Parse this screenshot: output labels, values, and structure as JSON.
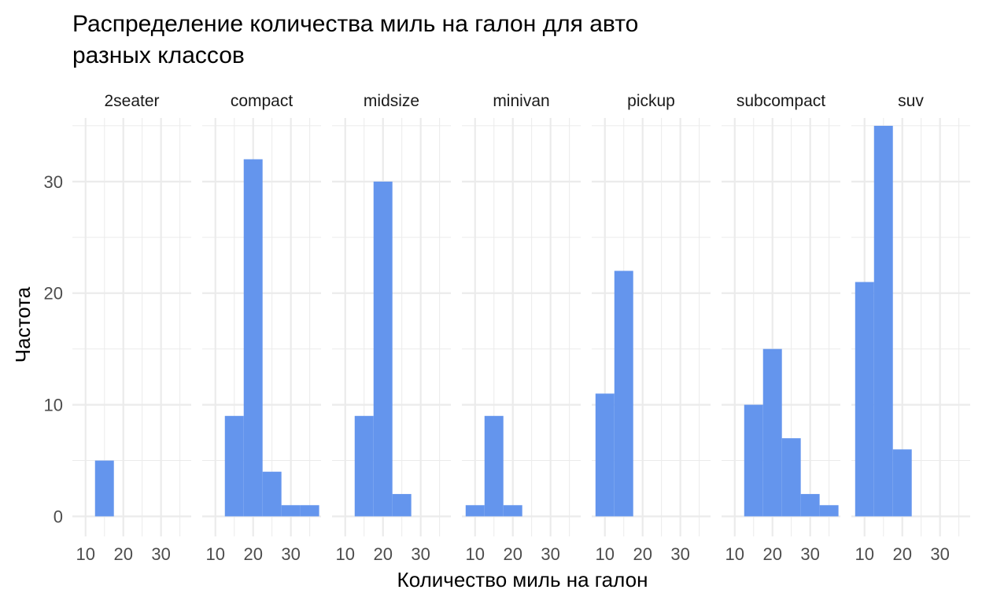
{
  "chart_data": {
    "type": "bar",
    "title": "Распределение количества миль на галон для авто разных классов",
    "title_lines": [
      "Распределение количества миль на галон для авто",
      "разных классов"
    ],
    "xlabel": "Количество миль на галон",
    "ylabel": "Частота",
    "bin_width": 5,
    "xlim": [
      6.5,
      38
    ],
    "ylim": [
      -1.8,
      35.7
    ],
    "x_ticks": [
      10,
      20,
      30
    ],
    "x_tick_labels": [
      "10",
      "20",
      "30"
    ],
    "y_ticks": [
      0,
      10,
      20,
      30
    ],
    "y_tick_labels": [
      "0",
      "10",
      "20",
      "30"
    ],
    "x_minor_grid": [
      15,
      25,
      35
    ],
    "y_minor_grid": [
      5,
      15,
      25,
      35
    ],
    "bar_color": "#6495ED",
    "grid_color": "#EBEBEB",
    "facets": [
      {
        "name": "2seater",
        "bins": [
          {
            "x": 15,
            "count": 5
          }
        ]
      },
      {
        "name": "compact",
        "bins": [
          {
            "x": 15,
            "count": 9
          },
          {
            "x": 20,
            "count": 32
          },
          {
            "x": 25,
            "count": 4
          },
          {
            "x": 30,
            "count": 1
          },
          {
            "x": 35,
            "count": 1
          }
        ]
      },
      {
        "name": "midsize",
        "bins": [
          {
            "x": 15,
            "count": 9
          },
          {
            "x": 20,
            "count": 30
          },
          {
            "x": 25,
            "count": 2
          }
        ]
      },
      {
        "name": "minivan",
        "bins": [
          {
            "x": 10,
            "count": 1
          },
          {
            "x": 15,
            "count": 9
          },
          {
            "x": 20,
            "count": 1
          }
        ]
      },
      {
        "name": "pickup",
        "bins": [
          {
            "x": 10,
            "count": 11
          },
          {
            "x": 15,
            "count": 22
          }
        ]
      },
      {
        "name": "subcompact",
        "bins": [
          {
            "x": 15,
            "count": 10
          },
          {
            "x": 20,
            "count": 15
          },
          {
            "x": 25,
            "count": 7
          },
          {
            "x": 30,
            "count": 2
          },
          {
            "x": 35,
            "count": 1
          }
        ]
      },
      {
        "name": "suv",
        "bins": [
          {
            "x": 10,
            "count": 21
          },
          {
            "x": 15,
            "count": 35
          },
          {
            "x": 20,
            "count": 6
          }
        ]
      }
    ]
  }
}
